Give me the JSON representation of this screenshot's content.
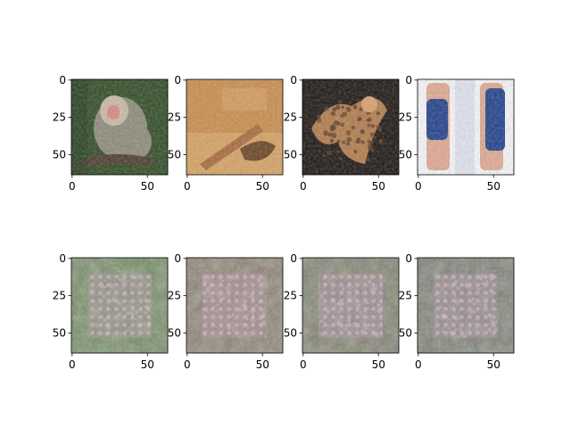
{
  "chart_data": {
    "type": "image-grid",
    "rows": 2,
    "cols": 4,
    "image_size": 64,
    "x_ticks": [
      0,
      50
    ],
    "y_ticks": [
      0,
      25,
      50
    ],
    "panels": [
      {
        "row": 0,
        "col": 0,
        "content": "photo",
        "subject": "macaque monkeys on a branch",
        "palette": [
          "#2e4a24",
          "#8c8a78",
          "#c9b8a4",
          "#4a3a2a"
        ]
      },
      {
        "row": 0,
        "col": 1,
        "content": "photo",
        "subject": "belt and leather items on sand",
        "palette": [
          "#c98c4a",
          "#a8683a",
          "#e2b57a",
          "#6a4222"
        ]
      },
      {
        "row": 0,
        "col": 2,
        "content": "photo",
        "subject": "leopard on dark background",
        "palette": [
          "#1a1410",
          "#b27a4a",
          "#d9a070",
          "#5a3a22"
        ]
      },
      {
        "row": 0,
        "col": 3,
        "content": "photo",
        "subject": "blue knee braces on legs",
        "palette": [
          "#f6f6fa",
          "#1f3f8a",
          "#e0a890",
          "#c8d0e0"
        ]
      },
      {
        "row": 1,
        "col": 0,
        "content": "generated",
        "subject": "noisy reconstruction",
        "palette": [
          "#6f8a5e",
          "#b89aa8",
          "#7e8070",
          "#d4b8c8"
        ]
      },
      {
        "row": 1,
        "col": 1,
        "content": "generated",
        "subject": "noisy reconstruction",
        "palette": [
          "#8a7e6e",
          "#b89aa8",
          "#7e7a70",
          "#d4b8c8"
        ]
      },
      {
        "row": 1,
        "col": 2,
        "content": "generated",
        "subject": "noisy reconstruction",
        "palette": [
          "#7c7e6a",
          "#c49ab8",
          "#807a72",
          "#e0b8d8"
        ]
      },
      {
        "row": 1,
        "col": 3,
        "content": "generated",
        "subject": "noisy reconstruction",
        "palette": [
          "#7a7c70",
          "#b89aa8",
          "#808078",
          "#d4b8c8"
        ]
      }
    ]
  }
}
